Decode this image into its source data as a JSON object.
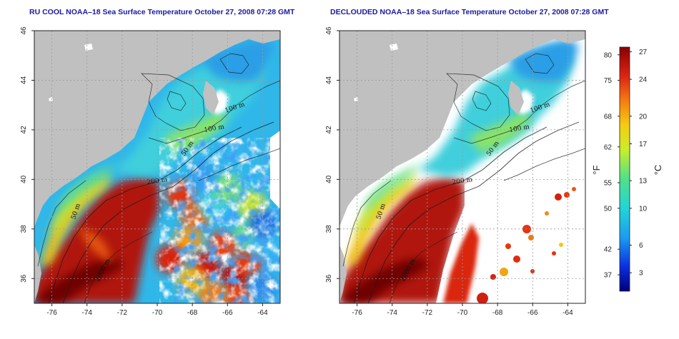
{
  "panels": [
    {
      "id": "left",
      "title": "RU COOL NOAA–18 Sea Surface Temperature October 27, 2008 07:28 GMT",
      "mode": "raw"
    },
    {
      "id": "right",
      "title": "DECLOUDED NOAA–18 Sea Surface Temperature October 27, 2008 07:28 GMT",
      "mode": "declouded"
    }
  ],
  "axes": {
    "lon_ticks": [
      "-76",
      "-74",
      "-72",
      "-70",
      "-68",
      "-66",
      "-64"
    ],
    "lon_values": [
      -76,
      -74,
      -72,
      -70,
      -68,
      -66,
      -64
    ],
    "lat_ticks": [
      "36",
      "38",
      "40",
      "42",
      "44",
      "46"
    ],
    "lat_values": [
      36,
      38,
      40,
      42,
      44,
      46
    ],
    "lon_range": [
      -77,
      -63
    ],
    "lat_range": [
      35,
      46
    ]
  },
  "contour_labels": [
    "100 m",
    "100 m",
    "50 m",
    "200 m",
    "50 m",
    "2000 m"
  ],
  "colorbar": {
    "fahrenheit_ticks": [
      "80",
      "75",
      "68",
      "62",
      "55",
      "50",
      "42",
      "37"
    ],
    "fahrenheit_values": [
      80,
      75,
      68,
      62,
      55,
      50,
      42,
      37
    ],
    "celsius_ticks": [
      "27",
      "24",
      "20",
      "17",
      "13",
      "10",
      "6",
      "3"
    ],
    "celsius_values": [
      27,
      24,
      20,
      17,
      13,
      10,
      6,
      3
    ],
    "unit_f": "°F",
    "unit_c": "°C",
    "range_c": [
      1,
      27.5
    ]
  },
  "colors": {
    "land": "#c0c0c0",
    "cloud": "#ffffff",
    "title": "#1a1aa0",
    "grid": "#9a9a9a"
  }
}
